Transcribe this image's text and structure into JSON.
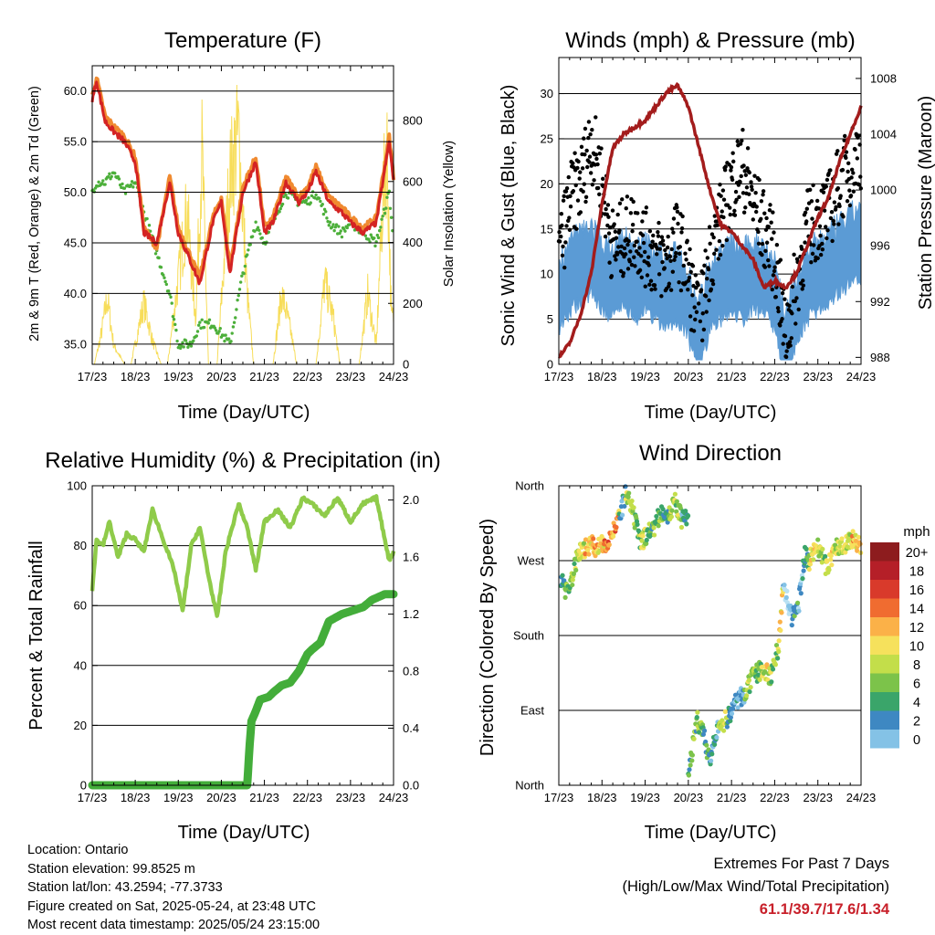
{
  "panels": {
    "temperature": {
      "title": "Temperature (F)",
      "ylabel_left": "2m & 9m T (Red, Orange) & 2m Td (Green)",
      "ylabel_right": "Solar Insolation (Yellow)",
      "xlabel": "Time (Day/UTC)",
      "left_ticks": [
        "35.0",
        "40.0",
        "45.0",
        "50.0",
        "55.0",
        "60.0"
      ],
      "right_ticks": [
        "0",
        "200",
        "400",
        "600",
        "800"
      ]
    },
    "winds": {
      "title": "Winds (mph) & Pressure (mb)",
      "ylabel_left": "Sonic Wind & Gust (Blue, Black)",
      "ylabel_right": "Station Pressure (Maroon)",
      "xlabel": "Time (Day/UTC)",
      "left_ticks": [
        "0",
        "5",
        "10",
        "15",
        "20",
        "25",
        "30"
      ],
      "right_ticks": [
        "988",
        "992",
        "996",
        "1000",
        "1004",
        "1008"
      ]
    },
    "humidity": {
      "title": "Relative Humidity (%) & Precipitation (in)",
      "ylabel_left": "Percent & Total Rainfall",
      "xlabel": "Time (Day/UTC)",
      "left_ticks": [
        "0",
        "20",
        "40",
        "60",
        "80",
        "100"
      ],
      "right_ticks": [
        "0.0",
        "0.4",
        "0.8",
        "1.2",
        "1.6",
        "2.0"
      ]
    },
    "direction": {
      "title": "Wind Direction",
      "ylabel_left": "Direction (Colored By Speed)",
      "xlabel": "Time (Day/UTC)",
      "left_ticks": [
        "North",
        "East",
        "South",
        "West",
        "North"
      ],
      "legend_title": "mph",
      "legend_labels": [
        "20+",
        "18",
        "16",
        "14",
        "12",
        "10",
        "8",
        "6",
        "4",
        "2",
        "0"
      ]
    }
  },
  "x_ticks": [
    "17/23",
    "18/23",
    "19/23",
    "20/23",
    "21/23",
    "22/23",
    "23/23",
    "24/23"
  ],
  "colors": {
    "temp_2m": "#d42323",
    "temp_9m": "#f08a30",
    "dewpoint": "#4caf3a",
    "solar": "#f7dd5a",
    "wind": "#5b9bd5",
    "gust": "#000000",
    "pressure": "#a31c1c",
    "rh": "#8fcb4a",
    "rain": "#43ad3a",
    "speed_scale": [
      "#b9e1f3",
      "#84c2e6",
      "#3e88c2",
      "#3aa56a",
      "#7cc34a",
      "#c3de4a",
      "#f6e15c",
      "#fbb148",
      "#f06c30",
      "#d93a2b",
      "#b51f28",
      "#8d1c1e"
    ]
  },
  "info": {
    "location": "Location: Ontario",
    "elevation": "Station elevation: 99.8525 m",
    "latlon": "Station lat/lon: 43.2594; -77.3733",
    "created": "Figure created on Sat, 2025-05-24, at 23:48 UTC",
    "timestamp": "Most recent data timestamp: 2025/05/24 23:15:00"
  },
  "extremes": {
    "heading": "Extremes For Past 7 Days",
    "subheading": "(High/Low/Max Wind/Total Precipitation)",
    "values": "61.1/39.7/17.6/1.34"
  },
  "chart_data": [
    {
      "type": "line",
      "title": "Temperature (F)",
      "xlabel": "Time (Day/UTC)",
      "ylabel": "2m & 9m T (Red, Orange) & 2m Td (Green)",
      "ylabel_right": "Solar Insolation (Yellow)",
      "x": [
        0,
        0.1,
        0.3,
        0.5,
        0.75,
        1.0,
        1.2,
        1.5,
        1.8,
        2.0,
        2.3,
        2.5,
        2.8,
        3.0,
        3.2,
        3.5,
        3.8,
        4.0,
        4.2,
        4.5,
        4.8,
        5.0,
        5.2,
        5.5,
        5.8,
        6.0,
        6.3,
        6.6,
        6.9,
        7.0
      ],
      "ylim": [
        33,
        62.5
      ],
      "y2lim": [
        0,
        980
      ],
      "series": [
        {
          "name": "2m T",
          "values": [
            59,
            61,
            57,
            56,
            55,
            53,
            46,
            45,
            51,
            46,
            43,
            41,
            47,
            49,
            42,
            50,
            53,
            46,
            47,
            51,
            49,
            50,
            52,
            49,
            48,
            47,
            46,
            47,
            55,
            51
          ]
        },
        {
          "name": "9m T",
          "values": [
            59.5,
            61.3,
            57.5,
            56.5,
            55.5,
            53.5,
            46.5,
            44.5,
            51.5,
            46.5,
            43.5,
            41.5,
            47.5,
            49.5,
            42.5,
            50.5,
            53.5,
            46.5,
            47.5,
            51.5,
            49.5,
            50.5,
            52.5,
            49.5,
            48.5,
            47.5,
            46.5,
            47.5,
            55.5,
            51.5
          ]
        },
        {
          "name": "2m Td",
          "values": [
            50,
            51,
            51,
            52,
            50,
            51,
            48,
            44,
            40,
            35,
            35,
            37,
            37,
            36,
            35,
            42,
            47,
            45,
            47,
            50,
            49,
            49,
            50,
            47,
            46,
            47,
            46,
            45,
            50,
            45
          ]
        },
        {
          "name": "Solar",
          "x": [
            0.05,
            0.2,
            0.35,
            0.5,
            0.75,
            0.9,
            1.2,
            1.4,
            1.6,
            1.75,
            2.2,
            2.4,
            2.55,
            2.7,
            2.9,
            3.2,
            3.4,
            3.6,
            3.75,
            4.2,
            4.4,
            4.6,
            4.75,
            5.2,
            5.4,
            5.6,
            5.75,
            6.2,
            6.4,
            6.6,
            6.75,
            6.85,
            6.95
          ],
          "values": [
            0,
            120,
            280,
            80,
            0,
            0,
            260,
            100,
            0,
            0,
            650,
            200,
            900,
            0,
            0,
            800,
            970,
            300,
            0,
            0,
            300,
            150,
            0,
            0,
            350,
            200,
            0,
            0,
            300,
            80,
            700,
            900,
            200
          ]
        }
      ]
    },
    {
      "type": "line",
      "title": "Winds (mph) & Pressure (mb)",
      "xlabel": "Time (Day/UTC)",
      "ylabel": "Sonic Wind & Gust (Blue, Black)",
      "ylabel_right": "Station Pressure (Maroon)",
      "x": [
        0,
        0.25,
        0.5,
        0.75,
        1.0,
        1.25,
        1.5,
        1.75,
        2.0,
        2.25,
        2.5,
        2.75,
        3.0,
        3.25,
        3.5,
        3.75,
        4.0,
        4.25,
        4.5,
        4.75,
        5.0,
        5.25,
        5.5,
        5.75,
        6.0,
        6.25,
        6.5,
        6.75,
        7.0
      ],
      "ylim": [
        0,
        34
      ],
      "y2lim": [
        987.5,
        1009.5
      ],
      "series": [
        {
          "name": "Wind",
          "values": [
            8,
            10,
            11,
            12,
            10,
            9,
            11,
            9,
            10,
            9,
            8,
            9,
            7,
            3,
            8,
            9,
            10,
            9,
            10,
            10,
            8,
            2,
            6,
            9,
            10,
            11,
            12,
            13,
            14
          ]
        },
        {
          "name": "Gust",
          "values": [
            12,
            18,
            20,
            25,
            20,
            13,
            14,
            15,
            13,
            12,
            11,
            14,
            10,
            4,
            12,
            16,
            20,
            22,
            18,
            15,
            12,
            3,
            9,
            15,
            16,
            17,
            20,
            22,
            24
          ]
        },
        {
          "name": "Pressure",
          "values": [
            988,
            989,
            991,
            994,
            999,
            1003,
            1004,
            1004.5,
            1005,
            1006,
            1007,
            1007.5,
            1006,
            1003,
            1000,
            997.5,
            997,
            996,
            995,
            993,
            993.5,
            993,
            994,
            996,
            998,
            999.5,
            1002,
            1004,
            1006
          ]
        }
      ]
    },
    {
      "type": "line",
      "title": "Relative Humidity (%) & Precipitation (in)",
      "xlabel": "Time (Day/UTC)",
      "ylabel": "Percent & Total Rainfall",
      "x": [
        0,
        0.1,
        0.25,
        0.4,
        0.6,
        0.8,
        1.0,
        1.2,
        1.4,
        1.7,
        1.9,
        2.1,
        2.3,
        2.5,
        2.7,
        2.9,
        3.1,
        3.4,
        3.6,
        3.8,
        4.0,
        4.3,
        4.6,
        4.9,
        5.1,
        5.4,
        5.7,
        6.0,
        6.3,
        6.6,
        6.8,
        6.9,
        7.0
      ],
      "ylim": [
        0,
        100
      ],
      "y2lim": [
        0,
        2.1
      ],
      "series": [
        {
          "name": "RH",
          "values": [
            65,
            82,
            80,
            88,
            76,
            84,
            82,
            78,
            92,
            80,
            72,
            58,
            80,
            86,
            70,
            56,
            78,
            94,
            86,
            72,
            88,
            92,
            86,
            96,
            94,
            90,
            96,
            88,
            94,
            96,
            82,
            75,
            78
          ]
        },
        {
          "name": "Rain",
          "x": [
            0,
            3.6,
            3.65,
            3.7,
            3.8,
            3.9,
            4.1,
            4.2,
            4.4,
            4.6,
            4.8,
            5.0,
            5.1,
            5.3,
            5.5,
            5.8,
            6.0,
            6.3,
            6.5,
            6.8,
            7.0
          ],
          "values": [
            0,
            0,
            0.25,
            0.45,
            0.52,
            0.6,
            0.62,
            0.65,
            0.7,
            0.72,
            0.8,
            0.92,
            0.95,
            1.0,
            1.15,
            1.2,
            1.22,
            1.25,
            1.3,
            1.34,
            1.34
          ]
        }
      ]
    },
    {
      "type": "scatter",
      "title": "Wind Direction",
      "xlabel": "Time (Day/UTC)",
      "ylabel": "Direction (Colored By Speed)",
      "y_categories": [
        "North",
        "East",
        "South",
        "West",
        "North"
      ],
      "ylim": [
        0,
        360
      ],
      "color_scale": {
        "title": "mph",
        "labels": [
          "20+",
          "18",
          "16",
          "14",
          "12",
          "10",
          "8",
          "6",
          "4",
          "2",
          "0"
        ]
      },
      "x": [
        0.05,
        0.15,
        0.3,
        0.45,
        0.6,
        0.75,
        0.9,
        1.05,
        1.2,
        1.4,
        1.55,
        1.7,
        1.9,
        2.0,
        2.2,
        2.4,
        2.55,
        2.7,
        2.85,
        3.0,
        3.2,
        3.35,
        3.5,
        3.7,
        3.9,
        4.1,
        4.3,
        4.5,
        4.7,
        4.9,
        5.1,
        5.2,
        5.4,
        5.55,
        5.7,
        5.8,
        6.0,
        6.2,
        6.4,
        6.6,
        6.8,
        7.0
      ],
      "values": [
        250,
        235,
        245,
        280,
        285,
        290,
        285,
        290,
        300,
        320,
        350,
        330,
        290,
        300,
        310,
        330,
        325,
        340,
        320,
        10,
        80,
        60,
        30,
        70,
        80,
        100,
        110,
        130,
        140,
        130,
        170,
        240,
        200,
        215,
        280,
        270,
        290,
        260,
        285,
        290,
        295,
        290
      ],
      "speeds": [
        6,
        8,
        9,
        10,
        14,
        13,
        12,
        16,
        15,
        4,
        9,
        8,
        11,
        7,
        8,
        6,
        10,
        9,
        5,
        7,
        8,
        6,
        4,
        10,
        4,
        3,
        9,
        8,
        11,
        9,
        12,
        1,
        5,
        3,
        6,
        12,
        9,
        11,
        10,
        11,
        13,
        15
      ]
    }
  ]
}
